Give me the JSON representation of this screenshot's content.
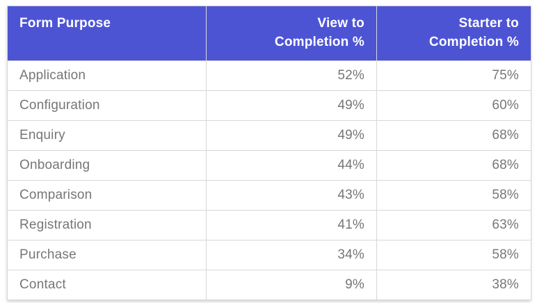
{
  "colors": {
    "header_background": "#4d54d4",
    "header_text": "#ffffff",
    "body_text": "#76767a",
    "border": "#d7d7d9",
    "page_background": "#ffffff"
  },
  "table": {
    "columns": [
      {
        "label": "Form Purpose",
        "label_lines": [
          "Form Purpose"
        ],
        "align": "left"
      },
      {
        "label": "View to Completion %",
        "label_lines": [
          "View to",
          "Completion %"
        ],
        "align": "right"
      },
      {
        "label": "Starter to Completion %",
        "label_lines": [
          "Starter to",
          "Completion %"
        ],
        "align": "right"
      }
    ],
    "rows": [
      {
        "purpose": "Application",
        "view_to_completion": "52%",
        "starter_to_completion": "75%"
      },
      {
        "purpose": "Configuration",
        "view_to_completion": "49%",
        "starter_to_completion": "60%"
      },
      {
        "purpose": "Enquiry",
        "view_to_completion": "49%",
        "starter_to_completion": "68%"
      },
      {
        "purpose": "Onboarding",
        "view_to_completion": "44%",
        "starter_to_completion": "68%"
      },
      {
        "purpose": "Comparison",
        "view_to_completion": "43%",
        "starter_to_completion": "58%"
      },
      {
        "purpose": "Registration",
        "view_to_completion": "41%",
        "starter_to_completion": "63%"
      },
      {
        "purpose": "Purchase",
        "view_to_completion": "34%",
        "starter_to_completion": "58%"
      },
      {
        "purpose": "Contact",
        "view_to_completion": "9%",
        "starter_to_completion": "38%"
      }
    ]
  }
}
